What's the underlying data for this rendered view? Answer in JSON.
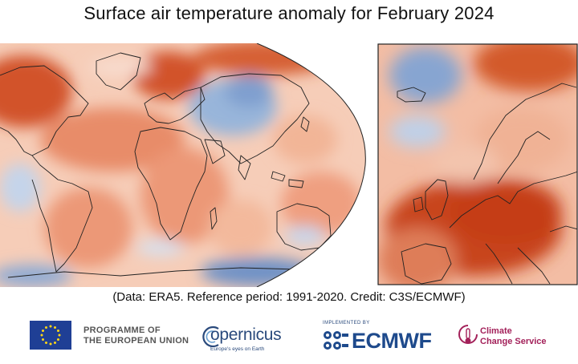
{
  "title": "Surface air temperature anomaly for February 2024",
  "credit": "(Data: ERA5.  Reference period: 1991-2020.  Credit: C3S/ECMWF)",
  "maps": {
    "world": {
      "description": "global",
      "projection": "Robinson"
    },
    "europe": {
      "description": "europe"
    }
  },
  "logos": {
    "eu_line1": "PROGRAMME OF",
    "eu_line2": "THE EUROPEAN UNION",
    "copernicus_word": "opernicus",
    "copernicus_tagline": "Europe's eyes on Earth",
    "ecmwf_implemented": "IMPLEMENTED BY",
    "ecmwf_word": "ECMWF",
    "c3s_line1": "Climate",
    "c3s_line2": "Change Service"
  },
  "colors": {
    "warm_strong": "#c73a10",
    "warm_mid": "#e98a6a",
    "warm_light": "#f6cdb8",
    "neutral": "#fbeee6",
    "cool_light": "#c9d8ec",
    "cool_strong": "#3d6fb2",
    "coast": "#222222",
    "eu_blue": "#1f3f95",
    "eu_star": "#ffd617",
    "copernicus_blue": "#2a4a7c",
    "ecmwf_blue": "#1e4a8c",
    "c3s_red": "#a3215a"
  }
}
